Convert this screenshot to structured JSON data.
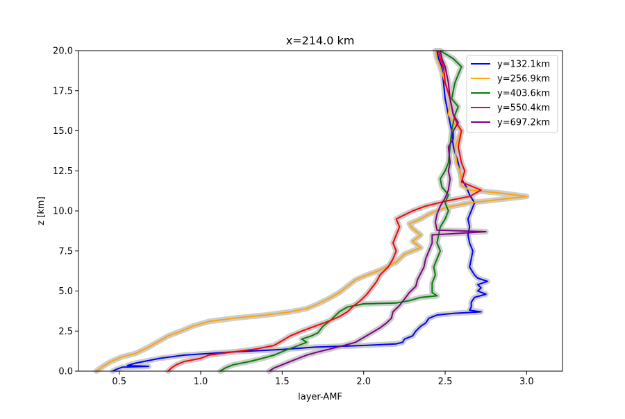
{
  "chart_data": {
    "type": "line",
    "title": "x=214.0 km",
    "xlabel": "layer-AMF",
    "ylabel": "z [km]",
    "xlim": [
      0.25,
      3.22
    ],
    "ylim": [
      0,
      20
    ],
    "x_ticks": [
      0.5,
      1.0,
      1.5,
      2.0,
      2.5,
      3.0
    ],
    "x_tick_labels": [
      "0.5",
      "1.0",
      "1.5",
      "2.0",
      "2.5",
      "3.0"
    ],
    "y_ticks": [
      0,
      2.5,
      5,
      7.5,
      10,
      12.5,
      15,
      17.5,
      20
    ],
    "y_tick_labels": [
      "0.0",
      "2.5",
      "5.0",
      "7.5",
      "10.0",
      "12.5",
      "15.0",
      "17.5",
      "20.0"
    ],
    "grid": false,
    "legend_position": "top-right",
    "band_color": "#c8c8c8",
    "series": [
      {
        "name": "y=132.1km",
        "color": "#0000ff",
        "points": [
          [
            0.46,
            0
          ],
          [
            0.48,
            0.1
          ],
          [
            0.52,
            0.25
          ],
          [
            0.68,
            0.3
          ],
          [
            0.55,
            0.35
          ],
          [
            0.6,
            0.5
          ],
          [
            0.75,
            0.8
          ],
          [
            0.9,
            1.0
          ],
          [
            1.05,
            1.1
          ],
          [
            1.2,
            1.2
          ],
          [
            1.5,
            1.35
          ],
          [
            1.7,
            1.5
          ],
          [
            2.0,
            1.6
          ],
          [
            2.2,
            1.7
          ],
          [
            2.24,
            1.8
          ],
          [
            2.25,
            2.0
          ],
          [
            2.3,
            2.2
          ],
          [
            2.32,
            2.5
          ],
          [
            2.35,
            2.8
          ],
          [
            2.38,
            3.0
          ],
          [
            2.4,
            3.3
          ],
          [
            2.45,
            3.5
          ],
          [
            2.55,
            3.6
          ],
          [
            2.72,
            3.7
          ],
          [
            2.65,
            3.8
          ],
          [
            2.66,
            4.0
          ],
          [
            2.66,
            4.3
          ],
          [
            2.68,
            4.6
          ],
          [
            2.75,
            4.8
          ],
          [
            2.7,
            5.0
          ],
          [
            2.72,
            5.2
          ],
          [
            2.7,
            5.4
          ],
          [
            2.76,
            5.6
          ],
          [
            2.7,
            5.8
          ],
          [
            2.68,
            6.0
          ],
          [
            2.65,
            6.5
          ],
          [
            2.66,
            7.0
          ],
          [
            2.67,
            7.5
          ],
          [
            2.65,
            8.0
          ],
          [
            2.64,
            8.5
          ],
          [
            2.65,
            9.0
          ],
          [
            2.64,
            9.5
          ],
          [
            2.66,
            10.0
          ],
          [
            2.68,
            10.5
          ],
          [
            2.65,
            11.0
          ],
          [
            2.63,
            11.5
          ],
          [
            2.6,
            12.0
          ],
          [
            2.58,
            13.0
          ],
          [
            2.55,
            14.0
          ],
          [
            2.54,
            15.0
          ],
          [
            2.52,
            16.0
          ],
          [
            2.5,
            17.0
          ],
          [
            2.49,
            18.0
          ],
          [
            2.48,
            19.0
          ],
          [
            2.46,
            19.5
          ],
          [
            2.45,
            20.0
          ]
        ]
      },
      {
        "name": "y=256.9km",
        "color": "#ffa500",
        "points": [
          [
            0.36,
            0
          ],
          [
            0.4,
            0.3
          ],
          [
            0.45,
            0.6
          ],
          [
            0.52,
            0.9
          ],
          [
            0.6,
            1.1
          ],
          [
            0.68,
            1.5
          ],
          [
            0.75,
            1.9
          ],
          [
            0.8,
            2.2
          ],
          [
            0.88,
            2.5
          ],
          [
            0.95,
            2.8
          ],
          [
            1.05,
            3.1
          ],
          [
            1.2,
            3.3
          ],
          [
            1.4,
            3.5
          ],
          [
            1.55,
            3.7
          ],
          [
            1.65,
            3.9
          ],
          [
            1.72,
            4.2
          ],
          [
            1.78,
            4.5
          ],
          [
            1.85,
            4.9
          ],
          [
            1.9,
            5.3
          ],
          [
            1.95,
            5.7
          ],
          [
            2.02,
            6.0
          ],
          [
            2.1,
            6.3
          ],
          [
            2.2,
            6.8
          ],
          [
            2.25,
            7.3
          ],
          [
            2.35,
            7.7
          ],
          [
            2.3,
            8.1
          ],
          [
            2.35,
            8.5
          ],
          [
            2.3,
            8.9
          ],
          [
            2.28,
            9.2
          ],
          [
            2.35,
            9.5
          ],
          [
            2.4,
            9.8
          ],
          [
            2.5,
            10.2
          ],
          [
            2.65,
            10.5
          ],
          [
            3.0,
            10.9
          ],
          [
            2.85,
            11.1
          ],
          [
            2.65,
            11.3
          ],
          [
            2.6,
            11.6
          ],
          [
            2.6,
            12.0
          ],
          [
            2.59,
            12.5
          ],
          [
            2.57,
            13.0
          ],
          [
            2.56,
            14.0
          ],
          [
            2.6,
            15.0
          ],
          [
            2.55,
            15.5
          ],
          [
            2.52,
            16.0
          ],
          [
            2.53,
            17.0
          ],
          [
            2.5,
            18.0
          ],
          [
            2.47,
            19.0
          ],
          [
            2.45,
            19.5
          ],
          [
            2.44,
            20.0
          ]
        ]
      },
      {
        "name": "y=403.6km",
        "color": "#008000",
        "points": [
          [
            1.12,
            0
          ],
          [
            1.15,
            0.2
          ],
          [
            1.2,
            0.4
          ],
          [
            1.3,
            0.6
          ],
          [
            1.38,
            0.8
          ],
          [
            1.45,
            1.0
          ],
          [
            1.52,
            1.3
          ],
          [
            1.6,
            1.6
          ],
          [
            1.65,
            1.8
          ],
          [
            1.62,
            2.0
          ],
          [
            1.68,
            2.2
          ],
          [
            1.72,
            2.4
          ],
          [
            1.75,
            2.8
          ],
          [
            1.8,
            3.2
          ],
          [
            1.85,
            3.7
          ],
          [
            1.9,
            4.0
          ],
          [
            2.0,
            4.2
          ],
          [
            2.2,
            4.25
          ],
          [
            2.28,
            4.4
          ],
          [
            2.35,
            4.6
          ],
          [
            2.45,
            4.7
          ],
          [
            2.42,
            4.9
          ],
          [
            2.42,
            5.5
          ],
          [
            2.44,
            6.0
          ],
          [
            2.43,
            6.5
          ],
          [
            2.45,
            7.0
          ],
          [
            2.47,
            7.5
          ],
          [
            2.45,
            8.0
          ],
          [
            2.46,
            8.5
          ],
          [
            2.47,
            9.0
          ],
          [
            2.5,
            9.5
          ],
          [
            2.52,
            10.0
          ],
          [
            2.5,
            10.5
          ],
          [
            2.52,
            11.0
          ],
          [
            2.48,
            11.5
          ],
          [
            2.47,
            12.0
          ],
          [
            2.5,
            12.5
          ],
          [
            2.52,
            13.0
          ],
          [
            2.53,
            14.0
          ],
          [
            2.54,
            15.0
          ],
          [
            2.56,
            16.0
          ],
          [
            2.58,
            16.5
          ],
          [
            2.54,
            17.0
          ],
          [
            2.56,
            18.0
          ],
          [
            2.6,
            19.0
          ],
          [
            2.55,
            19.5
          ],
          [
            2.47,
            20.0
          ]
        ]
      },
      {
        "name": "y=550.4km",
        "color": "#ff0000",
        "points": [
          [
            0.8,
            0
          ],
          [
            0.82,
            0.2
          ],
          [
            0.85,
            0.4
          ],
          [
            0.9,
            0.6
          ],
          [
            1.0,
            0.8
          ],
          [
            1.05,
            1.0
          ],
          [
            1.2,
            1.2
          ],
          [
            1.35,
            1.4
          ],
          [
            1.45,
            1.6
          ],
          [
            1.5,
            1.9
          ],
          [
            1.55,
            2.2
          ],
          [
            1.62,
            2.5
          ],
          [
            1.7,
            2.8
          ],
          [
            1.78,
            3.1
          ],
          [
            1.85,
            3.4
          ],
          [
            1.9,
            3.7
          ],
          [
            1.93,
            4.0
          ],
          [
            1.98,
            4.4
          ],
          [
            2.02,
            4.8
          ],
          [
            2.05,
            5.2
          ],
          [
            2.08,
            5.6
          ],
          [
            2.1,
            6.0
          ],
          [
            2.15,
            6.5
          ],
          [
            2.18,
            7.0
          ],
          [
            2.2,
            7.5
          ],
          [
            2.18,
            8.0
          ],
          [
            2.2,
            8.5
          ],
          [
            2.22,
            9.0
          ],
          [
            2.2,
            9.5
          ],
          [
            2.3,
            10.0
          ],
          [
            2.38,
            10.3
          ],
          [
            2.5,
            10.6
          ],
          [
            2.65,
            10.9
          ],
          [
            2.72,
            11.3
          ],
          [
            2.6,
            11.8
          ],
          [
            2.62,
            12.5
          ],
          [
            2.6,
            13.0
          ],
          [
            2.58,
            14.0
          ],
          [
            2.6,
            15.0
          ],
          [
            2.57,
            15.5
          ],
          [
            2.55,
            16.0
          ],
          [
            2.53,
            17.0
          ],
          [
            2.5,
            18.0
          ],
          [
            2.49,
            19.0
          ],
          [
            2.47,
            19.5
          ],
          [
            2.46,
            20.0
          ]
        ]
      },
      {
        "name": "y=697.2km",
        "color": "#800080",
        "points": [
          [
            1.42,
            0
          ],
          [
            1.45,
            0.2
          ],
          [
            1.5,
            0.4
          ],
          [
            1.55,
            0.6
          ],
          [
            1.6,
            0.8
          ],
          [
            1.65,
            1.0
          ],
          [
            1.72,
            1.2
          ],
          [
            1.8,
            1.4
          ],
          [
            1.88,
            1.6
          ],
          [
            1.95,
            1.8
          ],
          [
            2.0,
            2.1
          ],
          [
            2.05,
            2.4
          ],
          [
            2.1,
            2.7
          ],
          [
            2.14,
            3.0
          ],
          [
            2.17,
            3.3
          ],
          [
            2.18,
            3.7
          ],
          [
            2.22,
            4.1
          ],
          [
            2.25,
            4.5
          ],
          [
            2.28,
            4.9
          ],
          [
            2.32,
            5.3
          ],
          [
            2.33,
            5.7
          ],
          [
            2.35,
            6.1
          ],
          [
            2.37,
            6.5
          ],
          [
            2.38,
            7.0
          ],
          [
            2.4,
            7.5
          ],
          [
            2.42,
            8.0
          ],
          [
            2.42,
            8.5
          ],
          [
            2.75,
            8.7
          ],
          [
            2.45,
            8.8
          ],
          [
            2.44,
            9.3
          ],
          [
            2.45,
            9.8
          ],
          [
            2.47,
            10.3
          ],
          [
            2.5,
            10.8
          ],
          [
            2.52,
            11.3
          ],
          [
            2.53,
            12.0
          ],
          [
            2.52,
            12.5
          ],
          [
            2.53,
            13.0
          ],
          [
            2.52,
            14.0
          ],
          [
            2.55,
            14.5
          ],
          [
            2.55,
            15.0
          ],
          [
            2.58,
            15.5
          ],
          [
            2.55,
            16.0
          ],
          [
            2.53,
            17.0
          ],
          [
            2.52,
            18.0
          ],
          [
            2.5,
            19.0
          ],
          [
            2.48,
            19.5
          ],
          [
            2.47,
            20.0
          ]
        ]
      }
    ]
  }
}
